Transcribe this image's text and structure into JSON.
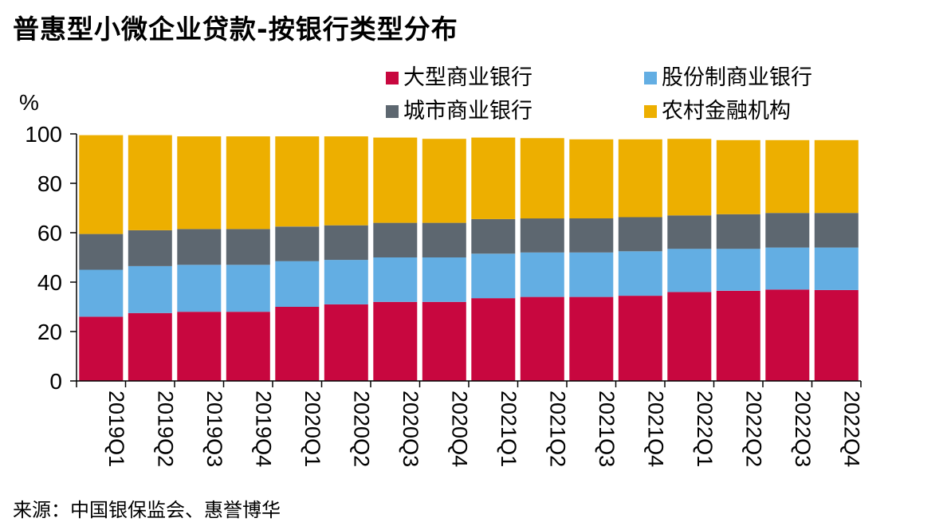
{
  "title": "普惠型小微企业贷款-按银行类型分布",
  "source": "来源：中国银保监会、惠誉博华",
  "chart_data": {
    "type": "bar",
    "stacked": true,
    "ylabel": "%",
    "ylim": [
      0,
      100
    ],
    "yticks": [
      0,
      20,
      40,
      60,
      80,
      100
    ],
    "categories": [
      "2019Q1",
      "2019Q2",
      "2019Q3",
      "2019Q4",
      "2020Q1",
      "2020Q2",
      "2020Q3",
      "2020Q4",
      "2021Q1",
      "2021Q2",
      "2021Q3",
      "2021Q4",
      "2022Q1",
      "2022Q2",
      "2022Q3",
      "2022Q4"
    ],
    "legend_position": "top-right",
    "grid": false,
    "series": [
      {
        "name": "大型商业银行",
        "color": "#C8073F",
        "values": [
          26.0,
          27.5,
          28.0,
          28.0,
          30.0,
          31.0,
          32.0,
          32.0,
          33.5,
          34.0,
          34.0,
          34.5,
          36.0,
          36.5,
          37.0,
          36.8
        ]
      },
      {
        "name": "股份制商业银行",
        "color": "#63AEE3",
        "values": [
          19.0,
          19.0,
          19.0,
          19.0,
          18.5,
          18.0,
          18.0,
          18.0,
          18.0,
          18.0,
          18.0,
          18.0,
          17.5,
          17.0,
          17.0,
          17.2
        ]
      },
      {
        "name": "城市商业银行",
        "color": "#5D6770",
        "values": [
          14.5,
          14.5,
          14.5,
          14.5,
          14.0,
          14.0,
          14.0,
          14.0,
          14.0,
          13.8,
          13.8,
          13.8,
          13.5,
          14.0,
          14.0,
          14.0
        ]
      },
      {
        "name": "农村金融机构",
        "color": "#EDAF00",
        "values": [
          40.0,
          38.5,
          37.5,
          37.5,
          36.5,
          36.0,
          34.5,
          34.0,
          33.0,
          32.5,
          32.0,
          31.5,
          31.0,
          30.0,
          29.5,
          29.5
        ]
      }
    ]
  }
}
